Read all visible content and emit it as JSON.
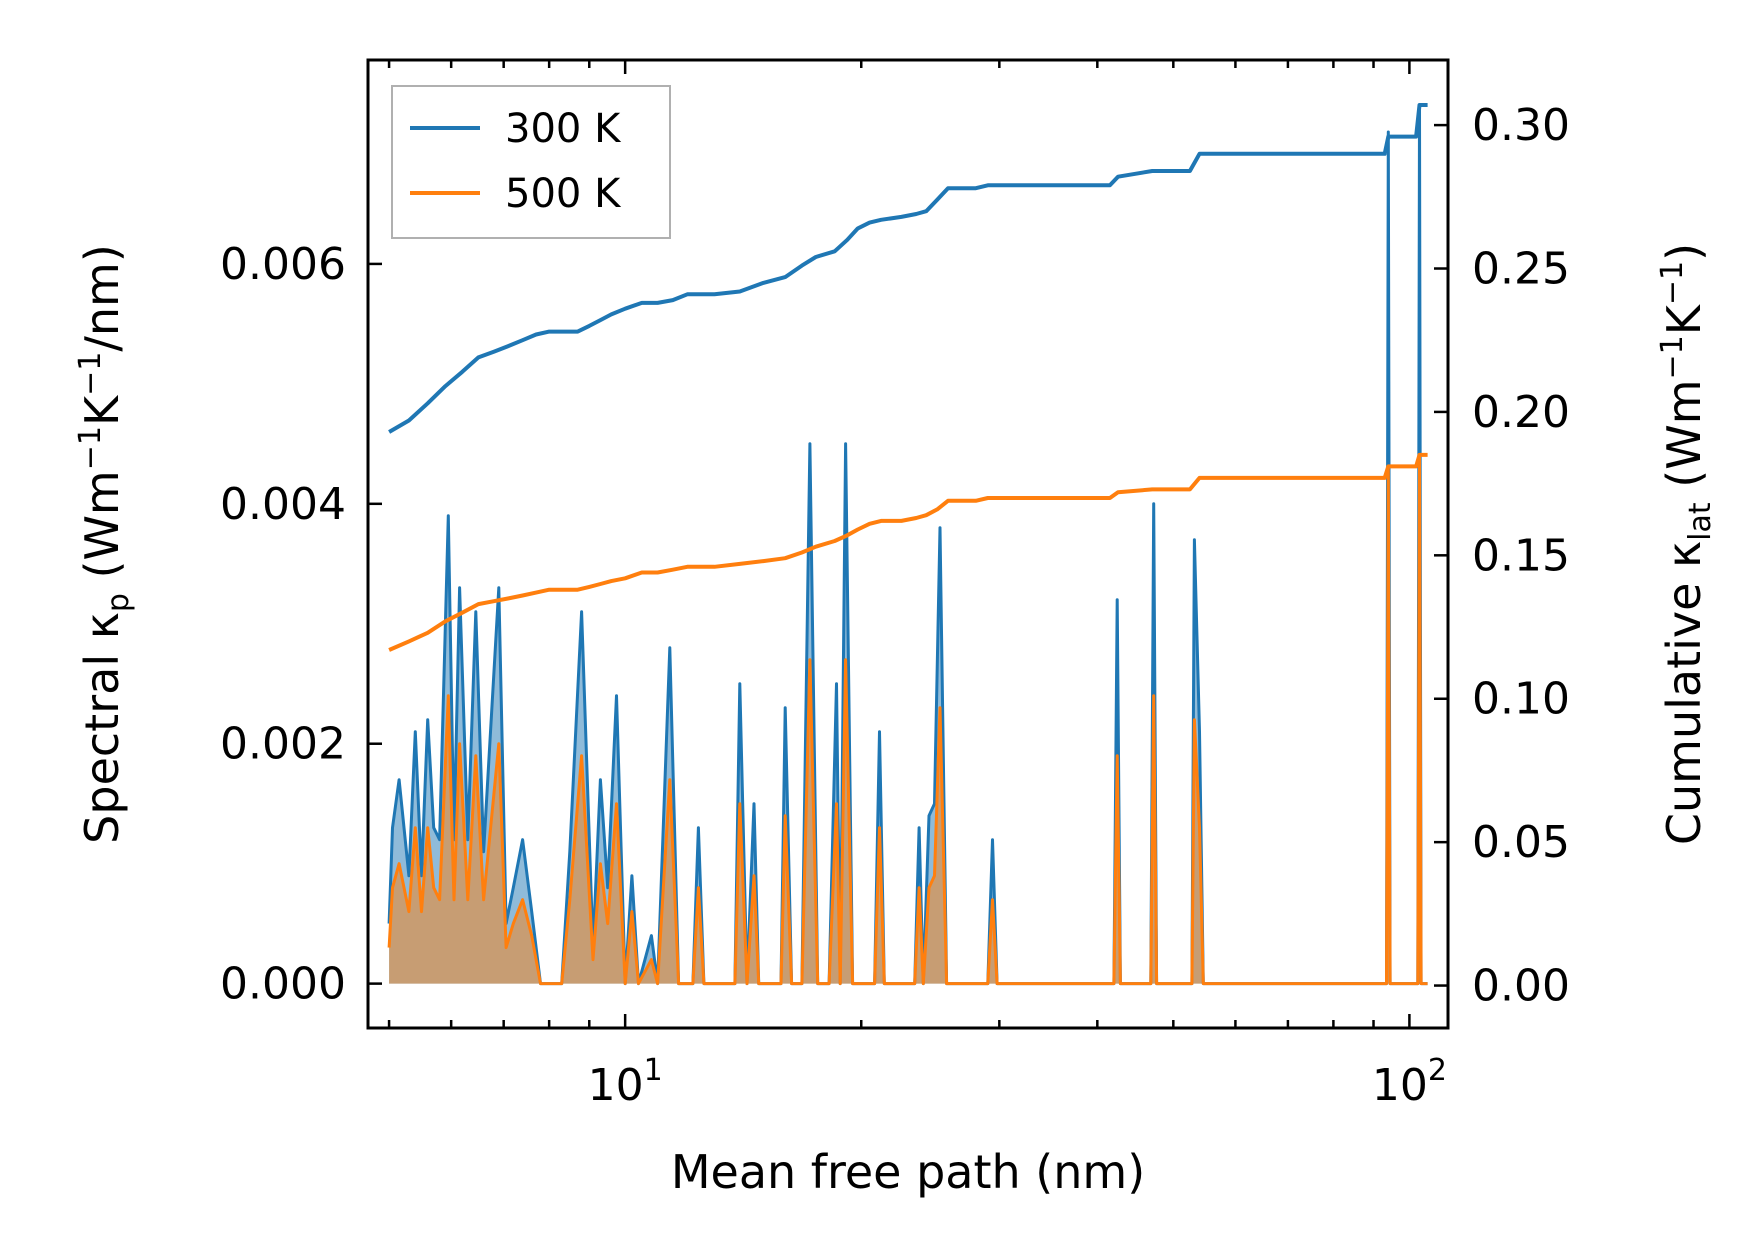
{
  "chart_data": {
    "type": "area+line",
    "xscale": "log",
    "xlim": [
      4.7,
      112
    ],
    "ylim_left": [
      -0.00037,
      0.0077
    ],
    "ylim_right": [
      -0.0148,
      0.3227
    ],
    "xlabel": "Mean free path (nm)",
    "ylabel_left": {
      "pre": "Spectral κ",
      "sub": "p",
      "post1": " (Wm",
      "sup1": "−1",
      "mid": "K",
      "sup2": "−1",
      "post2": "/nm)"
    },
    "ylabel_right": {
      "pre": "Cumulative κ",
      "sub": "lat",
      "post1": " (Wm",
      "sup1": "−1",
      "mid": "K",
      "sup2": "−1",
      "post2": ")"
    },
    "xticks": [
      {
        "base": "10",
        "exp": "1",
        "value": 10
      },
      {
        "base": "10",
        "exp": "2",
        "value": 100
      }
    ],
    "yticks_left": [
      {
        "value": 0.0,
        "label": "0.000"
      },
      {
        "value": 0.002,
        "label": "0.002"
      },
      {
        "value": 0.004,
        "label": "0.004"
      },
      {
        "value": 0.006,
        "label": "0.006"
      }
    ],
    "yticks_right": [
      {
        "value": 0.0,
        "label": "0.00"
      },
      {
        "value": 0.05,
        "label": "0.05"
      },
      {
        "value": 0.1,
        "label": "0.10"
      },
      {
        "value": 0.15,
        "label": "0.15"
      },
      {
        "value": 0.2,
        "label": "0.20"
      },
      {
        "value": 0.25,
        "label": "0.25"
      },
      {
        "value": 0.3,
        "label": "0.30"
      }
    ],
    "legend": {
      "position": "top-left",
      "entries": [
        "300 K",
        "500 K"
      ]
    },
    "series": [
      {
        "name": "300 K",
        "color": "#1f77b4",
        "spectral": [
          [
            5.0,
            0.0005
          ],
          [
            5.05,
            0.0013
          ],
          [
            5.15,
            0.0017
          ],
          [
            5.3,
            0.0009
          ],
          [
            5.4,
            0.0021
          ],
          [
            5.5,
            0.0009
          ],
          [
            5.6,
            0.0022
          ],
          [
            5.7,
            0.0013
          ],
          [
            5.8,
            0.0012
          ],
          [
            5.95,
            0.0039
          ],
          [
            6.05,
            0.0012
          ],
          [
            6.15,
            0.0033
          ],
          [
            6.3,
            0.0012
          ],
          [
            6.45,
            0.0031
          ],
          [
            6.6,
            0.0011
          ],
          [
            6.9,
            0.0033
          ],
          [
            7.05,
            0.0005
          ],
          [
            7.2,
            0.0008
          ],
          [
            7.4,
            0.0012
          ],
          [
            7.6,
            0.0006
          ],
          [
            7.8,
            0.0
          ],
          [
            8.3,
            0.0
          ],
          [
            8.5,
            0.0011
          ],
          [
            8.8,
            0.0031
          ],
          [
            9.1,
            0.0003
          ],
          [
            9.3,
            0.0017
          ],
          [
            9.5,
            0.0008
          ],
          [
            9.75,
            0.0024
          ],
          [
            10.0,
            0.0
          ],
          [
            10.2,
            0.0009
          ],
          [
            10.4,
            0.0
          ],
          [
            10.8,
            0.0004
          ],
          [
            11.0,
            0.0
          ],
          [
            11.4,
            0.0028
          ],
          [
            11.7,
            0.0
          ],
          [
            12.2,
            0.0
          ],
          [
            12.4,
            0.0013
          ],
          [
            12.6,
            0.0
          ],
          [
            13.8,
            0.0
          ],
          [
            14.0,
            0.0025
          ],
          [
            14.3,
            0.0
          ],
          [
            14.6,
            0.0015
          ],
          [
            14.8,
            0.0
          ],
          [
            15.8,
            0.0
          ],
          [
            16.0,
            0.0023
          ],
          [
            16.3,
            0.0
          ],
          [
            16.8,
            0.0
          ],
          [
            17.2,
            0.0045
          ],
          [
            17.6,
            0.0
          ],
          [
            18.2,
            0.0
          ],
          [
            18.6,
            0.0025
          ],
          [
            18.8,
            0.0
          ],
          [
            19.1,
            0.0045
          ],
          [
            19.5,
            0.0
          ],
          [
            20.8,
            0.0
          ],
          [
            21.1,
            0.0021
          ],
          [
            21.4,
            0.0
          ],
          [
            23.4,
            0.0
          ],
          [
            23.7,
            0.0013
          ],
          [
            24.0,
            0.0
          ],
          [
            24.4,
            0.0014
          ],
          [
            24.8,
            0.0015
          ],
          [
            25.2,
            0.0038
          ],
          [
            25.7,
            0.0
          ],
          [
            29.0,
            0.0
          ],
          [
            29.4,
            0.0012
          ],
          [
            29.8,
            0.0
          ],
          [
            42.0,
            0.0
          ],
          [
            42.4,
            0.0032
          ],
          [
            42.8,
            0.0
          ],
          [
            46.8,
            0.0
          ],
          [
            47.2,
            0.004
          ],
          [
            47.6,
            0.0
          ],
          [
            52.8,
            0.0
          ],
          [
            53.2,
            0.0037
          ],
          [
            54.0,
            0.0021
          ],
          [
            54.6,
            0.0
          ],
          [
            93.5,
            0.0
          ],
          [
            94.0,
            0.0071
          ],
          [
            94.5,
            0.0
          ],
          [
            102.5,
            0.0
          ],
          [
            103.0,
            0.0073
          ],
          [
            103.5,
            0.0
          ],
          [
            105.5,
            0.0
          ]
        ],
        "cumulative": [
          [
            5.0,
            0.193
          ],
          [
            5.3,
            0.197
          ],
          [
            5.6,
            0.203
          ],
          [
            5.9,
            0.209
          ],
          [
            6.2,
            0.214
          ],
          [
            6.5,
            0.219
          ],
          [
            6.8,
            0.221
          ],
          [
            7.1,
            0.223
          ],
          [
            7.4,
            0.225
          ],
          [
            7.7,
            0.227
          ],
          [
            8.0,
            0.228
          ],
          [
            8.7,
            0.228
          ],
          [
            9.0,
            0.23
          ],
          [
            9.3,
            0.232
          ],
          [
            9.6,
            0.234
          ],
          [
            10.0,
            0.236
          ],
          [
            10.5,
            0.238
          ],
          [
            11.0,
            0.238
          ],
          [
            11.5,
            0.239
          ],
          [
            12.0,
            0.241
          ],
          [
            13.0,
            0.241
          ],
          [
            14.0,
            0.242
          ],
          [
            15.0,
            0.245
          ],
          [
            16.0,
            0.247
          ],
          [
            16.8,
            0.251
          ],
          [
            17.5,
            0.254
          ],
          [
            18.5,
            0.256
          ],
          [
            19.2,
            0.26
          ],
          [
            19.8,
            0.264
          ],
          [
            20.5,
            0.266
          ],
          [
            21.2,
            0.267
          ],
          [
            22.5,
            0.268
          ],
          [
            23.5,
            0.269
          ],
          [
            24.2,
            0.27
          ],
          [
            25.0,
            0.274
          ],
          [
            25.8,
            0.278
          ],
          [
            28.0,
            0.278
          ],
          [
            29.0,
            0.279
          ],
          [
            41.5,
            0.279
          ],
          [
            42.5,
            0.282
          ],
          [
            47.0,
            0.284
          ],
          [
            52.5,
            0.284
          ],
          [
            54.0,
            0.29
          ],
          [
            93.0,
            0.29
          ],
          [
            94.0,
            0.296
          ],
          [
            102.0,
            0.296
          ],
          [
            103.0,
            0.307
          ],
          [
            105.5,
            0.307
          ]
        ]
      },
      {
        "name": "500 K",
        "color": "#ff7f0e",
        "spectral": [
          [
            5.0,
            0.0003
          ],
          [
            5.05,
            0.0008
          ],
          [
            5.15,
            0.001
          ],
          [
            5.3,
            0.0006
          ],
          [
            5.4,
            0.0013
          ],
          [
            5.5,
            0.0006
          ],
          [
            5.6,
            0.0013
          ],
          [
            5.7,
            0.0008
          ],
          [
            5.8,
            0.0007
          ],
          [
            5.95,
            0.0024
          ],
          [
            6.05,
            0.0007
          ],
          [
            6.15,
            0.002
          ],
          [
            6.3,
            0.0007
          ],
          [
            6.45,
            0.0019
          ],
          [
            6.6,
            0.0007
          ],
          [
            6.9,
            0.002
          ],
          [
            7.05,
            0.0003
          ],
          [
            7.2,
            0.0005
          ],
          [
            7.4,
            0.0007
          ],
          [
            7.6,
            0.0004
          ],
          [
            7.8,
            0.0
          ],
          [
            8.3,
            0.0
          ],
          [
            8.5,
            0.0007
          ],
          [
            8.8,
            0.0019
          ],
          [
            9.1,
            0.0002
          ],
          [
            9.3,
            0.001
          ],
          [
            9.5,
            0.0005
          ],
          [
            9.75,
            0.0015
          ],
          [
            10.0,
            0.0
          ],
          [
            10.2,
            0.0006
          ],
          [
            10.4,
            0.0
          ],
          [
            10.8,
            0.0002
          ],
          [
            11.0,
            0.0
          ],
          [
            11.4,
            0.0017
          ],
          [
            11.7,
            0.0
          ],
          [
            12.2,
            0.0
          ],
          [
            12.4,
            0.0008
          ],
          [
            12.6,
            0.0
          ],
          [
            13.8,
            0.0
          ],
          [
            14.0,
            0.0015
          ],
          [
            14.3,
            0.0
          ],
          [
            14.6,
            0.0009
          ],
          [
            14.8,
            0.0
          ],
          [
            15.8,
            0.0
          ],
          [
            16.0,
            0.0014
          ],
          [
            16.3,
            0.0
          ],
          [
            16.8,
            0.0
          ],
          [
            17.2,
            0.0027
          ],
          [
            17.6,
            0.0
          ],
          [
            18.2,
            0.0
          ],
          [
            18.6,
            0.0015
          ],
          [
            18.8,
            0.0
          ],
          [
            19.1,
            0.0027
          ],
          [
            19.5,
            0.0
          ],
          [
            20.8,
            0.0
          ],
          [
            21.1,
            0.0013
          ],
          [
            21.4,
            0.0
          ],
          [
            23.4,
            0.0
          ],
          [
            23.7,
            0.0008
          ],
          [
            24.0,
            0.0
          ],
          [
            24.4,
            0.0008
          ],
          [
            24.8,
            0.0009
          ],
          [
            25.2,
            0.0023
          ],
          [
            25.7,
            0.0
          ],
          [
            29.0,
            0.0
          ],
          [
            29.4,
            0.0007
          ],
          [
            29.8,
            0.0
          ],
          [
            42.0,
            0.0
          ],
          [
            42.4,
            0.0019
          ],
          [
            42.8,
            0.0
          ],
          [
            46.8,
            0.0
          ],
          [
            47.2,
            0.0024
          ],
          [
            47.6,
            0.0
          ],
          [
            52.8,
            0.0
          ],
          [
            53.2,
            0.0022
          ],
          [
            54.0,
            0.0013
          ],
          [
            54.6,
            0.0
          ],
          [
            93.5,
            0.0
          ],
          [
            94.0,
            0.0043
          ],
          [
            94.5,
            0.0
          ],
          [
            102.5,
            0.0
          ],
          [
            103.0,
            0.0044
          ],
          [
            103.5,
            0.0
          ],
          [
            105.5,
            0.0
          ]
        ],
        "cumulative": [
          [
            5.0,
            0.117
          ],
          [
            5.3,
            0.12
          ],
          [
            5.6,
            0.123
          ],
          [
            5.9,
            0.127
          ],
          [
            6.2,
            0.13
          ],
          [
            6.5,
            0.133
          ],
          [
            6.8,
            0.134
          ],
          [
            7.1,
            0.135
          ],
          [
            7.4,
            0.136
          ],
          [
            7.7,
            0.137
          ],
          [
            8.0,
            0.138
          ],
          [
            8.7,
            0.138
          ],
          [
            9.0,
            0.139
          ],
          [
            9.3,
            0.14
          ],
          [
            9.6,
            0.141
          ],
          [
            10.0,
            0.142
          ],
          [
            10.5,
            0.144
          ],
          [
            11.0,
            0.144
          ],
          [
            11.5,
            0.145
          ],
          [
            12.0,
            0.146
          ],
          [
            13.0,
            0.146
          ],
          [
            14.0,
            0.147
          ],
          [
            15.0,
            0.148
          ],
          [
            16.0,
            0.149
          ],
          [
            16.8,
            0.151
          ],
          [
            17.5,
            0.153
          ],
          [
            18.5,
            0.155
          ],
          [
            19.2,
            0.157
          ],
          [
            19.8,
            0.159
          ],
          [
            20.5,
            0.161
          ],
          [
            21.2,
            0.162
          ],
          [
            22.5,
            0.162
          ],
          [
            23.5,
            0.163
          ],
          [
            24.2,
            0.164
          ],
          [
            25.0,
            0.166
          ],
          [
            25.8,
            0.169
          ],
          [
            28.0,
            0.169
          ],
          [
            29.0,
            0.17
          ],
          [
            41.5,
            0.17
          ],
          [
            42.5,
            0.172
          ],
          [
            47.0,
            0.173
          ],
          [
            52.5,
            0.173
          ],
          [
            54.0,
            0.177
          ],
          [
            93.0,
            0.177
          ],
          [
            94.0,
            0.181
          ],
          [
            102.0,
            0.181
          ],
          [
            103.0,
            0.185
          ],
          [
            105.5,
            0.185
          ]
        ]
      }
    ]
  }
}
